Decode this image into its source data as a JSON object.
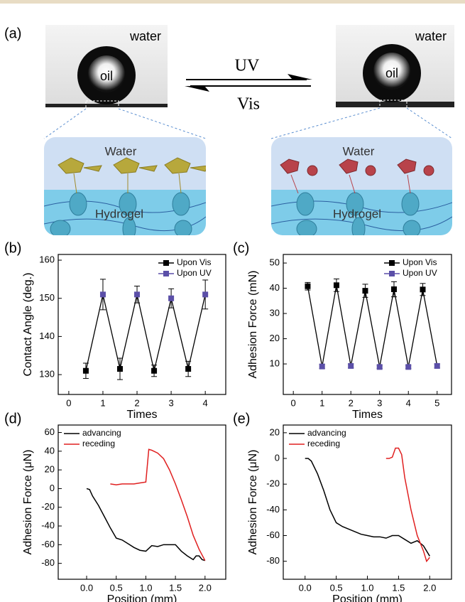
{
  "panel_a": {
    "label": "(a)",
    "left_photo": {
      "medium": "water",
      "drop": "oil"
    },
    "arrows": {
      "forward": "UV",
      "backward": "Vis"
    },
    "right_photo": {
      "medium": "water",
      "drop": "oil"
    },
    "left_schematic": {
      "top": "Water",
      "bottom": "Hydrogel"
    },
    "right_schematic": {
      "top": "Water",
      "bottom": "Hydrogel"
    }
  },
  "chart_data": [
    {
      "type": "scatter",
      "label": "(b)",
      "connect_series": true,
      "x_label": "Times",
      "y_label": "Contact Angle (deg.)",
      "xlim": [
        -0.31,
        4.6
      ],
      "xticks": [
        0,
        1,
        2,
        3,
        4
      ],
      "ylim": [
        124.8,
        161.5
      ],
      "yticks": [
        130,
        140,
        150,
        160
      ],
      "legend": "upper right",
      "series": [
        {
          "name": "Upon Vis",
          "color": "#000000",
          "x": [
            0.5,
            1.5,
            2.5,
            3.5
          ],
          "values": [
            131,
            131.5,
            131,
            131.5
          ],
          "errors": [
            2,
            2.8,
            1.5,
            2
          ]
        },
        {
          "name": "Upon UV",
          "color": "#5b4fa8",
          "x": [
            1,
            2,
            3,
            4
          ],
          "values": [
            151,
            151,
            150,
            151
          ],
          "errors": [
            4,
            2.2,
            2.5,
            3.8
          ]
        }
      ]
    },
    {
      "type": "scatter",
      "label": "(c)",
      "connect_series": true,
      "x_label": "Times",
      "y_label": "Adhesion Force (mN)",
      "xlim": [
        -0.35,
        5.5
      ],
      "xticks": [
        0,
        1,
        2,
        3,
        4,
        5
      ],
      "ylim": [
        -2.1,
        53.4
      ],
      "yticks": [
        10,
        20,
        30,
        40,
        50
      ],
      "legend": "upper right",
      "series": [
        {
          "name": "Upon Vis",
          "color": "#000000",
          "x": [
            0.5,
            1.5,
            2.5,
            3.5,
            4.5
          ],
          "values": [
            40.8,
            41.2,
            39,
            39.6,
            39.5
          ],
          "errors": [
            1.5,
            2.5,
            2.6,
            3,
            2.4
          ]
        },
        {
          "name": "Upon UV",
          "color": "#5b4fa8",
          "x": [
            1,
            2,
            3,
            4,
            5
          ],
          "values": [
            9,
            9.2,
            8.8,
            8.8,
            9.2
          ],
          "errors": [
            0.8,
            0.8,
            0.6,
            0.6,
            0.8
          ]
        }
      ]
    },
    {
      "type": "line",
      "label": "(d)",
      "x_label": "Position (mm)",
      "y_label": "Adhesion Force (μN)",
      "xlim": [
        -0.48,
        2.35
      ],
      "xticks": [
        {
          "value": 0,
          "label": "0.0"
        },
        {
          "value": 0.5,
          "label": "0.5"
        },
        {
          "value": 1,
          "label": "1.0"
        },
        {
          "value": 1.5,
          "label": "1.5"
        },
        {
          "value": 2,
          "label": "2.0"
        }
      ],
      "ylim": [
        -97,
        68
      ],
      "yticks": [
        -80,
        -60,
        -40,
        -20,
        0,
        20,
        40,
        60
      ],
      "legend": "upper left",
      "series": [
        {
          "name": "advancing",
          "color": "#000000",
          "x": [
            0,
            0.05,
            0.1,
            0.2,
            0.3,
            0.4,
            0.5,
            0.6,
            0.7,
            0.8,
            0.9,
            1.0,
            1.1,
            1.2,
            1.3,
            1.4,
            1.5,
            1.6,
            1.7,
            1.8,
            1.85,
            1.9,
            1.95,
            2.0
          ],
          "values": [
            0,
            -1,
            -8,
            -18,
            -30,
            -42,
            -53,
            -55,
            -59,
            -63,
            -66,
            -67,
            -61,
            -62,
            -60,
            -60,
            -60,
            -67,
            -72,
            -76,
            -72,
            -72,
            -76,
            -77
          ]
        },
        {
          "name": "receding",
          "color": "#e02020",
          "x": [
            0.4,
            0.5,
            0.6,
            0.7,
            0.8,
            0.9,
            1.0,
            1.05,
            1.1,
            1.2,
            1.3,
            1.4,
            1.5,
            1.6,
            1.7,
            1.8,
            1.9,
            2.0
          ],
          "values": [
            5,
            4,
            5,
            5,
            5,
            6,
            7,
            42,
            41,
            38,
            32,
            20,
            5,
            -12,
            -30,
            -50,
            -65,
            -77
          ]
        }
      ]
    },
    {
      "type": "line",
      "label": "(e)",
      "x_label": "Position (mm)",
      "y_label": "Adhesion Force (μN)",
      "xlim": [
        -0.35,
        2.35
      ],
      "xticks": [
        {
          "value": 0,
          "label": "0.0"
        },
        {
          "value": 0.5,
          "label": "0.5"
        },
        {
          "value": 1,
          "label": "1.0"
        },
        {
          "value": 1.5,
          "label": "1.5"
        },
        {
          "value": 2,
          "label": "2.0"
        }
      ],
      "ylim": [
        -94,
        26
      ],
      "yticks": [
        -80,
        -60,
        -40,
        -20,
        0,
        20
      ],
      "legend": "upper left",
      "series": [
        {
          "name": "advancing",
          "color": "#000000",
          "x": [
            0,
            0.05,
            0.1,
            0.2,
            0.3,
            0.4,
            0.5,
            0.6,
            0.7,
            0.8,
            0.9,
            1.0,
            1.1,
            1.2,
            1.3,
            1.4,
            1.5,
            1.6,
            1.7,
            1.8,
            1.9,
            2.0
          ],
          "values": [
            0,
            0,
            -2,
            -12,
            -25,
            -40,
            -50,
            -53,
            -55,
            -57,
            -59,
            -60,
            -61,
            -61,
            -62,
            -60,
            -60,
            -63,
            -66,
            -64,
            -68,
            -76
          ]
        },
        {
          "name": "receding",
          "color": "#e02020",
          "x": [
            1.3,
            1.35,
            1.4,
            1.45,
            1.5,
            1.55,
            1.6,
            1.7,
            1.8,
            1.9,
            1.95,
            2.0
          ],
          "values": [
            0,
            0,
            1,
            8,
            8,
            3,
            -15,
            -40,
            -60,
            -72,
            -80,
            -77
          ]
        }
      ]
    }
  ]
}
